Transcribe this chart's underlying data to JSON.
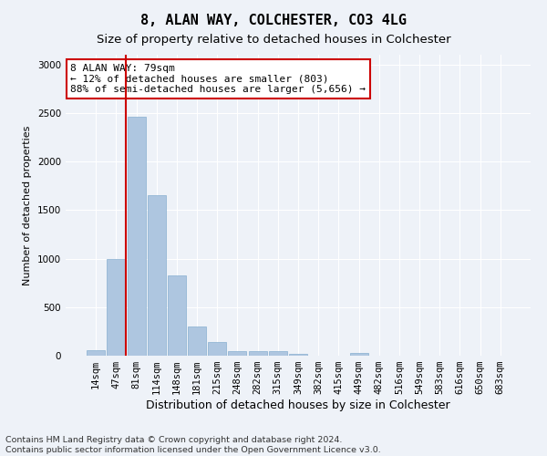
{
  "title": "8, ALAN WAY, COLCHESTER, CO3 4LG",
  "subtitle": "Size of property relative to detached houses in Colchester",
  "xlabel": "Distribution of detached houses by size in Colchester",
  "ylabel": "Number of detached properties",
  "bar_labels": [
    "14sqm",
    "47sqm",
    "81sqm",
    "114sqm",
    "148sqm",
    "181sqm",
    "215sqm",
    "248sqm",
    "282sqm",
    "315sqm",
    "349sqm",
    "382sqm",
    "415sqm",
    "449sqm",
    "482sqm",
    "516sqm",
    "549sqm",
    "583sqm",
    "616sqm",
    "650sqm",
    "683sqm"
  ],
  "bar_values": [
    60,
    1000,
    2460,
    1650,
    830,
    300,
    140,
    50,
    50,
    50,
    20,
    0,
    0,
    30,
    0,
    0,
    0,
    0,
    0,
    0,
    0
  ],
  "bar_color": "#aec6e0",
  "bar_edge_color": "#88afd0",
  "highlight_color": "#cc0000",
  "property_line_x": 1.5,
  "ylim": [
    0,
    3100
  ],
  "yticks": [
    0,
    500,
    1000,
    1500,
    2000,
    2500,
    3000
  ],
  "annotation_text": "8 ALAN WAY: 79sqm\n← 12% of detached houses are smaller (803)\n88% of semi-detached houses are larger (5,656) →",
  "annotation_box_facecolor": "#ffffff",
  "annotation_box_edgecolor": "#cc0000",
  "footer_line1": "Contains HM Land Registry data © Crown copyright and database right 2024.",
  "footer_line2": "Contains public sector information licensed under the Open Government Licence v3.0.",
  "background_color": "#eef2f8",
  "grid_color": "#ffffff",
  "title_fontsize": 11,
  "subtitle_fontsize": 9.5,
  "ylabel_fontsize": 8,
  "xlabel_fontsize": 9,
  "tick_fontsize": 7.5,
  "annotation_fontsize": 8,
  "footer_fontsize": 6.8
}
